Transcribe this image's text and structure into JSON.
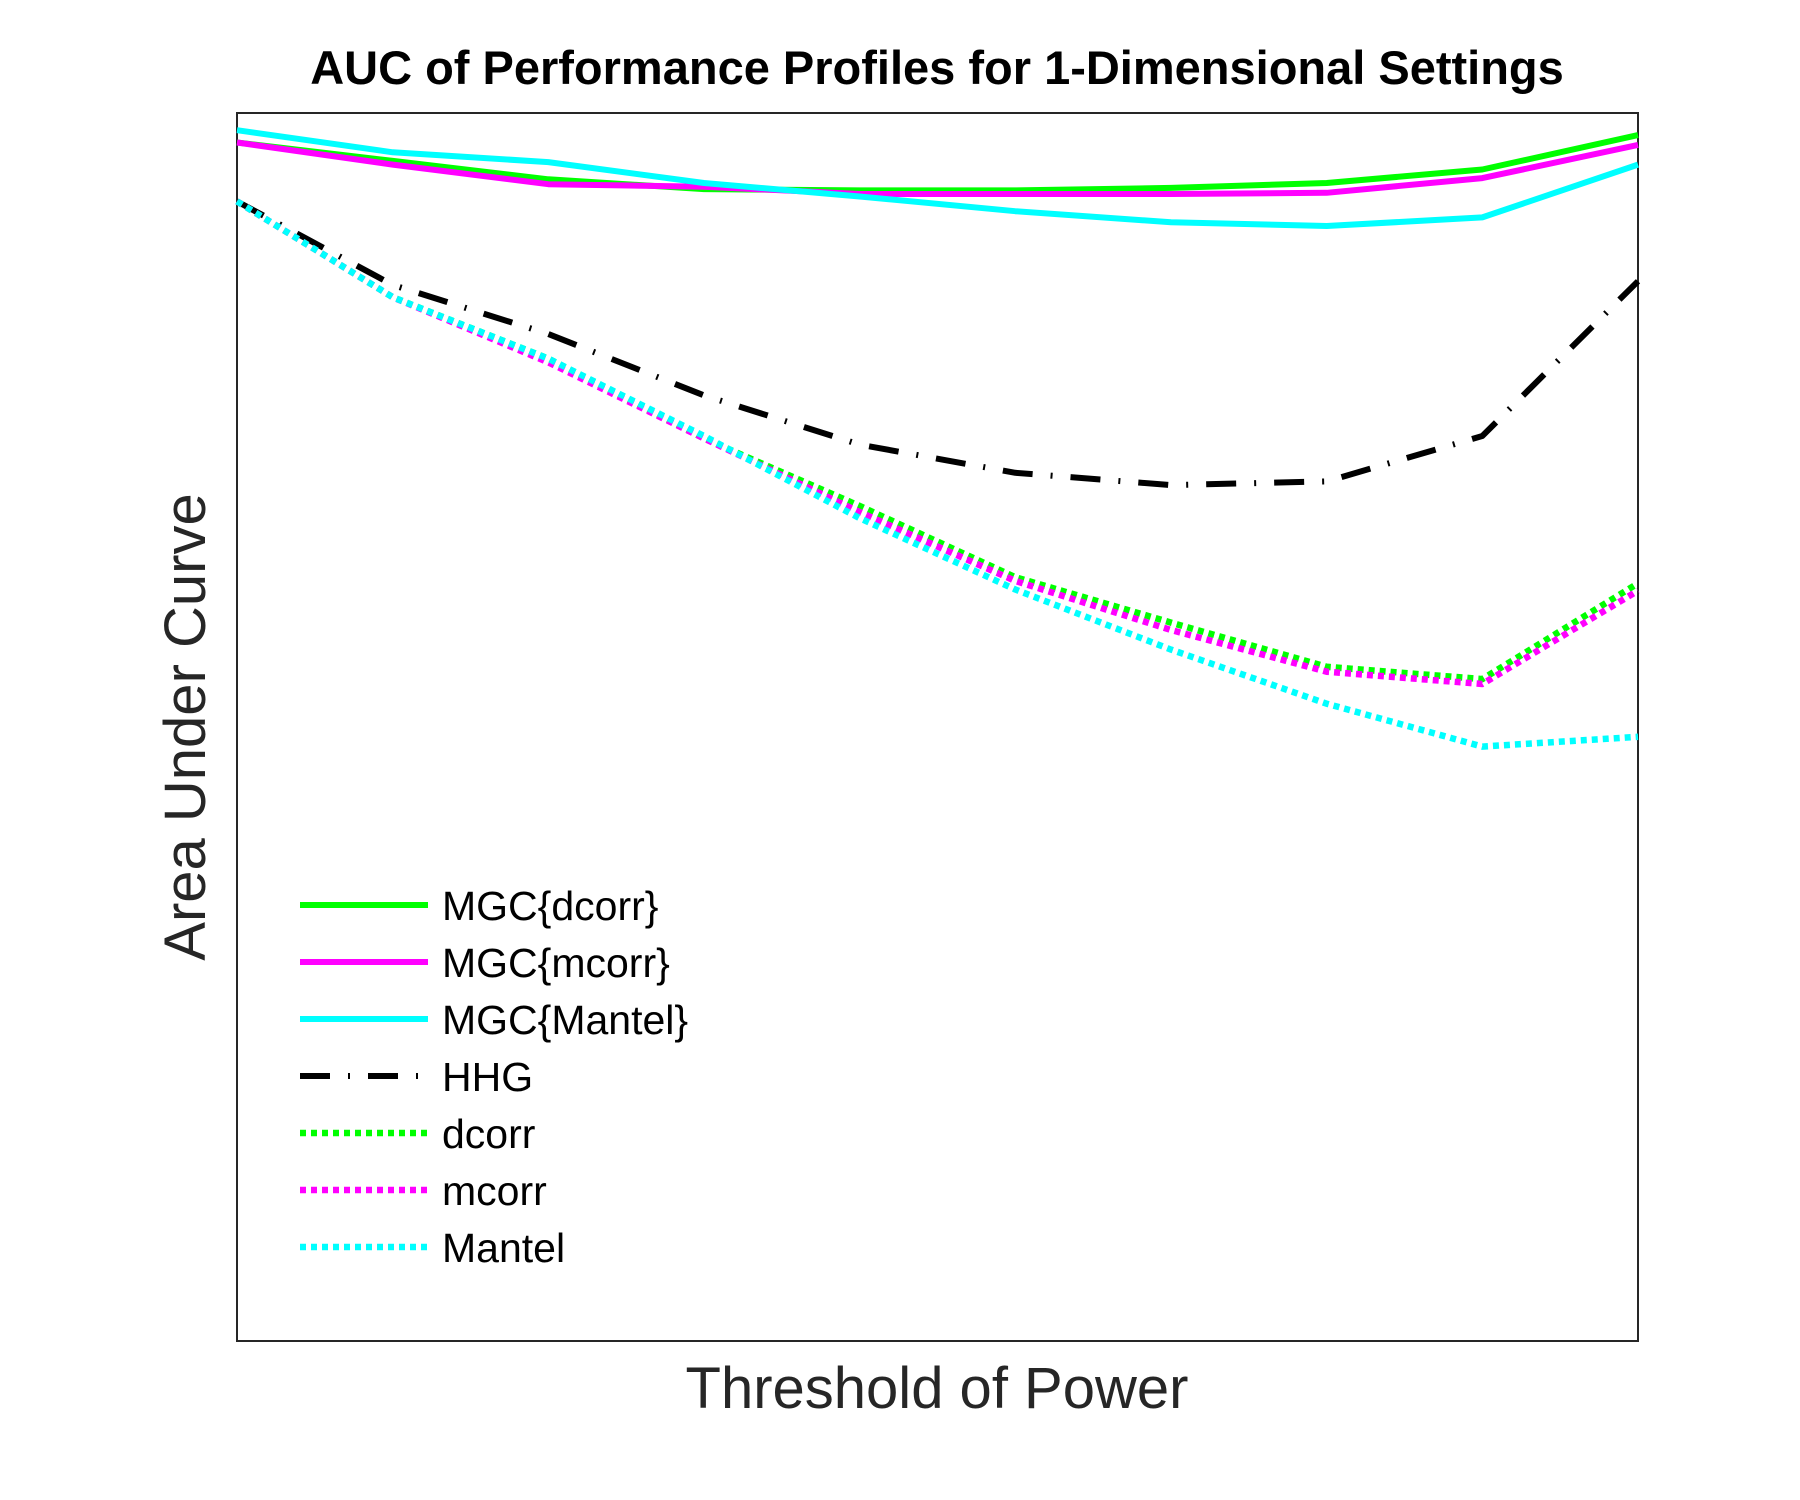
{
  "chart_data": {
    "type": "line",
    "title": "AUC of Performance Profiles for 1-Dimensional Settings",
    "xlabel": "Threshold of Power",
    "ylabel": "Area Under Curve",
    "x": [
      1,
      2,
      3,
      4,
      5,
      6,
      7,
      8,
      9,
      10
    ],
    "xlim": [
      1,
      10
    ],
    "ylim": [
      0,
      1
    ],
    "grid": false,
    "legend_position": "lower-left",
    "series": [
      {
        "name": "MGC{dcorr}",
        "color": "#00ff00",
        "style": "solid",
        "values": [
          0.976,
          0.961,
          0.946,
          0.938,
          0.937,
          0.937,
          0.939,
          0.943,
          0.954,
          0.982
        ]
      },
      {
        "name": "MGC{mcorr}",
        "color": "#ff00ff",
        "style": "solid",
        "values": [
          0.976,
          0.958,
          0.942,
          0.94,
          0.934,
          0.934,
          0.934,
          0.935,
          0.947,
          0.974
        ]
      },
      {
        "name": "MGC{Mantel}",
        "color": "#00ffff",
        "style": "solid",
        "values": [
          0.986,
          0.968,
          0.96,
          0.943,
          0.932,
          0.92,
          0.911,
          0.908,
          0.915,
          0.958
        ]
      },
      {
        "name": "HHG",
        "color": "#000000",
        "style": "dash-dot",
        "values": [
          0.928,
          0.86,
          0.82,
          0.77,
          0.73,
          0.707,
          0.697,
          0.7,
          0.737,
          0.863
        ]
      },
      {
        "name": "dcorr",
        "color": "#00ff00",
        "style": "dotted",
        "values": [
          0.928,
          0.85,
          0.8,
          0.735,
          0.68,
          0.622,
          0.585,
          0.549,
          0.539,
          0.617
        ]
      },
      {
        "name": "mcorr",
        "color": "#ff00ff",
        "style": "dotted",
        "values": [
          0.928,
          0.85,
          0.797,
          0.735,
          0.675,
          0.619,
          0.579,
          0.545,
          0.535,
          0.611
        ]
      },
      {
        "name": "Mantel",
        "color": "#00ffff",
        "style": "dotted",
        "values": [
          0.928,
          0.85,
          0.8,
          0.737,
          0.67,
          0.612,
          0.563,
          0.519,
          0.484,
          0.492
        ]
      }
    ]
  }
}
